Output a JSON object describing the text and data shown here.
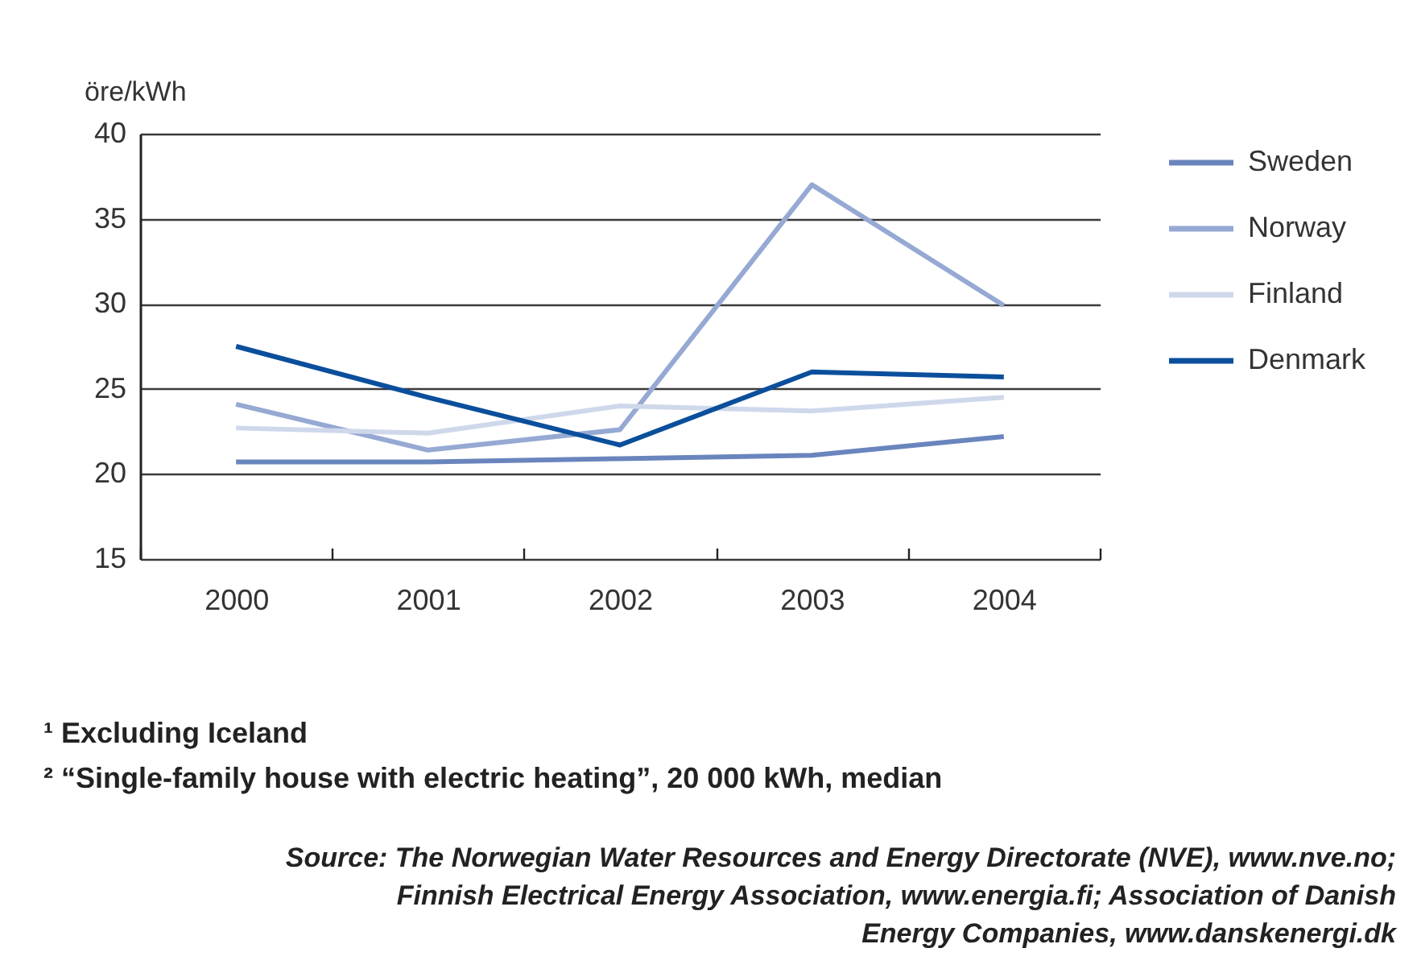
{
  "chart_data": {
    "type": "line",
    "ylabel": "öre/kWh",
    "categories": [
      "2000",
      "2001",
      "2002",
      "2003",
      "2004"
    ],
    "series": [
      {
        "name": "Sweden",
        "color": "#6a85bd",
        "values": [
          20.7,
          20.7,
          20.9,
          21.1,
          22.2
        ]
      },
      {
        "name": "Norway",
        "color": "#96a9d3",
        "values": [
          24.1,
          21.4,
          22.6,
          37.0,
          29.9
        ]
      },
      {
        "name": "Finland",
        "color": "#cfd8eb",
        "values": [
          22.7,
          22.4,
          24.0,
          23.7,
          24.5
        ]
      },
      {
        "name": "Denmark",
        "color": "#0b4f9c",
        "values": [
          27.5,
          24.5,
          21.7,
          26.0,
          25.7
        ]
      }
    ],
    "ylim": [
      15,
      40
    ],
    "yticks": [
      15,
      20,
      25,
      30,
      35,
      40
    ],
    "grid": "y",
    "legend": "right",
    "annotations": [
      "¹ Excluding Iceland",
      "² “Single-family house with electric heating”, 20 000 kWh, median",
      "Source: The Norwegian Water Resources and Energy Directorate (NVE), www.nve.no; Finnish Electrical Energy Association, www.energia.fi; Association of Danish Energy Companies, www.danskenergi.dk"
    ]
  }
}
